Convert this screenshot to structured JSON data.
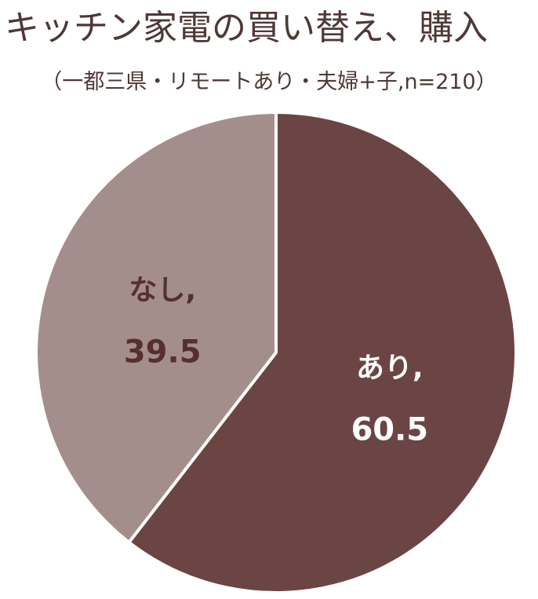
{
  "chart_data": {
    "type": "pie",
    "title": "キッチン家電の買い替え、購入",
    "subtitle": "（一都三県・リモートあり・夫婦+子,n=210）",
    "slices": [
      {
        "label": "あり,",
        "value": 60.5,
        "value_text": "60.5",
        "color": "#6b4543",
        "text_color": "#ffffff"
      },
      {
        "label": "なし,",
        "value": 39.5,
        "value_text": "39.5",
        "color": "#a48e8b",
        "text_color": "#55302f"
      }
    ],
    "start_angle_deg": 0,
    "direction": "clockwise",
    "legend": "none"
  }
}
